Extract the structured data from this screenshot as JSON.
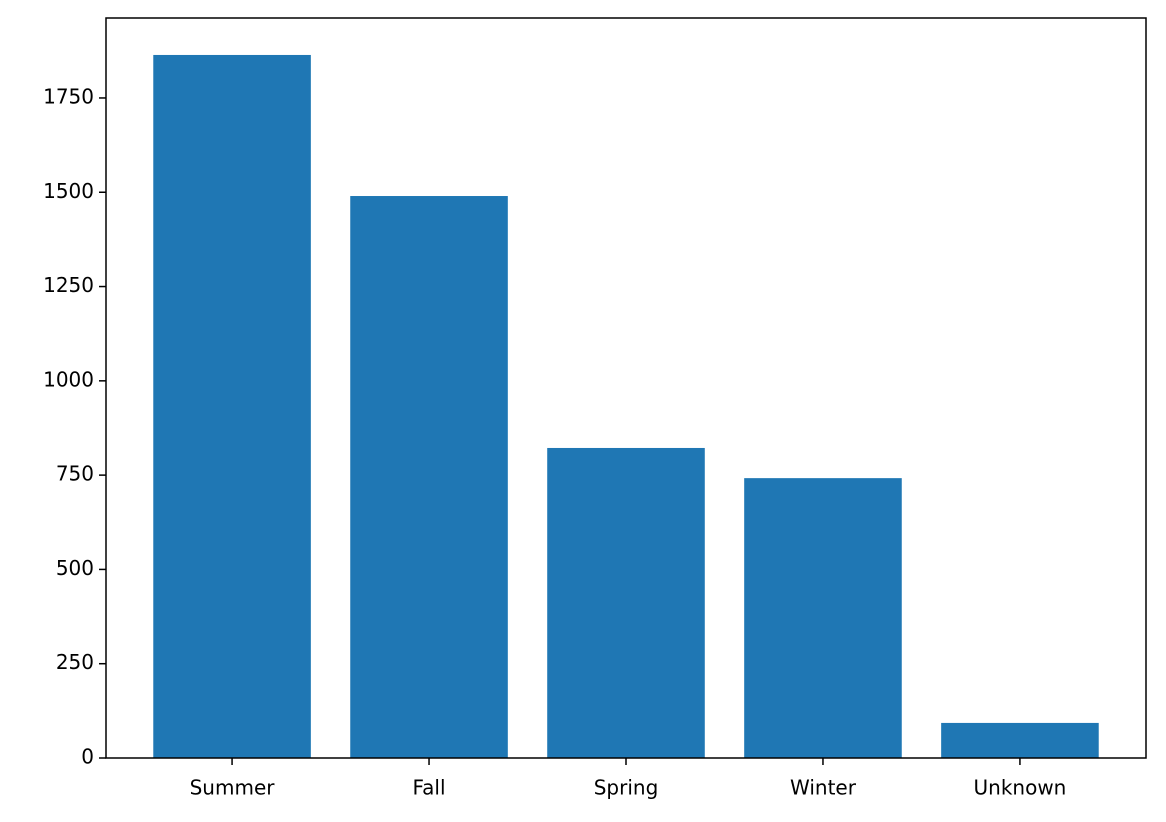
{
  "chart_data": {
    "type": "bar",
    "categories": [
      "Summer",
      "Fall",
      "Spring",
      "Winter",
      "Unknown"
    ],
    "values": [
      1864,
      1490,
      822,
      742,
      93
    ],
    "color": "#1f77b4",
    "ylim": [
      0,
      1962
    ],
    "yticks": [
      0,
      250,
      500,
      750,
      1000,
      1250,
      1500,
      1750
    ],
    "grid": false
  }
}
